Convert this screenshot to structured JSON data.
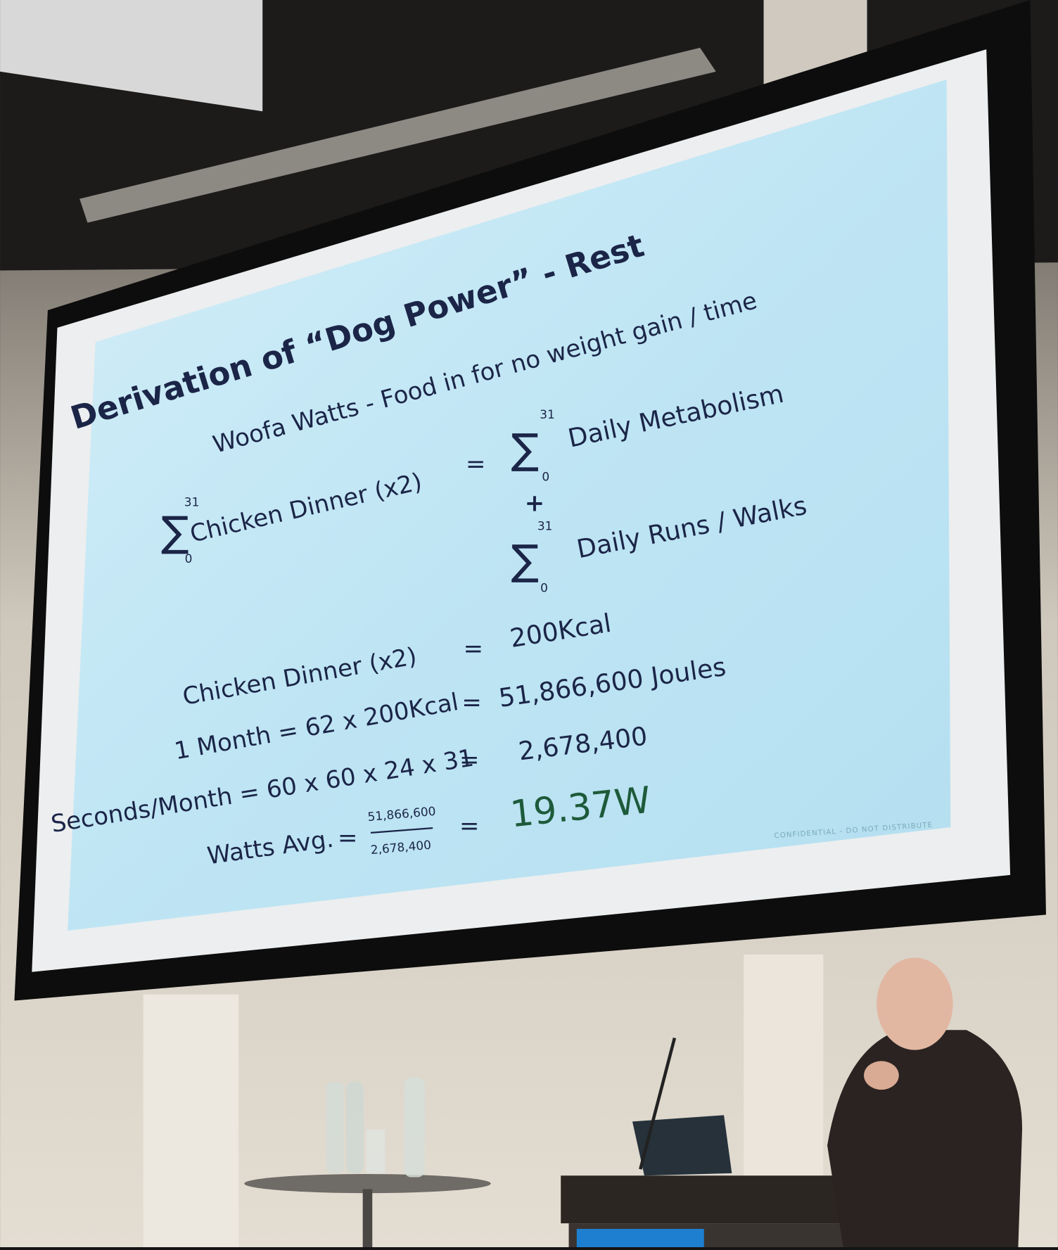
{
  "slide": {
    "title": "Derivation of “Dog Power” - Rest",
    "subtitle": "Woofa Watts - Food in for no weight gain / time",
    "equation": {
      "left": {
        "sum": {
          "symbol": "∑",
          "upper": "31",
          "lower": "0"
        },
        "term": "Chicken Dinner (x2)"
      },
      "equals": "=",
      "right": [
        {
          "sum": {
            "symbol": "∑",
            "upper": "31",
            "lower": "0"
          },
          "term": "Daily Metabolism"
        },
        {
          "sum": {
            "symbol": "∑",
            "upper": "31",
            "lower": "0"
          },
          "term": "Daily Runs / Walks"
        }
      ],
      "plus": "+"
    },
    "rows": [
      {
        "left": "Chicken Dinner (x2)",
        "equals": "=",
        "right": "200Kcal"
      },
      {
        "left": "1 Month = 62 x 200Kcal",
        "equals": "=",
        "right": "51,866,600 Joules"
      },
      {
        "left": "Seconds/Month = 60 x 60 x 24 x 31",
        "equals": "=",
        "right": "2,678,400"
      }
    ],
    "watts": {
      "label": "Watts Avg.",
      "equals1": "=",
      "numerator": "51,866,600",
      "denominator": "2,678,400",
      "equals2": "=",
      "result": "19.37W"
    },
    "footer": "CONFIDENTIAL - DO NOT DISTRIBUTE"
  }
}
